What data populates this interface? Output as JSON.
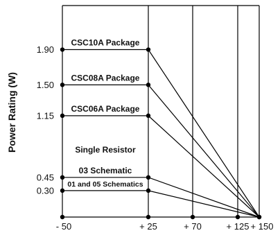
{
  "chart_data": {
    "type": "line",
    "ylabel": "Power Rating (W)",
    "xlim": [
      -50,
      150
    ],
    "ylim": [
      0,
      2.4
    ],
    "x_ticks": [
      -50,
      25,
      70,
      125,
      150
    ],
    "x_tick_labels": [
      "- 50",
      "+ 25",
      "+ 70",
      "+ 125",
      "+ 150"
    ],
    "y_ticks": [
      1.9,
      1.5,
      1.15,
      0.45,
      0.3
    ],
    "y_tick_labels": [
      "1.90",
      "1.50",
      "1.15",
      "0.45",
      "0.30"
    ],
    "grid": "vertical",
    "series": [
      {
        "name": "CSC10A Package",
        "x": [
          -50,
          25,
          150
        ],
        "y": [
          1.9,
          1.9,
          0
        ]
      },
      {
        "name": "CSC08A Package",
        "x": [
          -50,
          25,
          150
        ],
        "y": [
          1.5,
          1.5,
          0
        ]
      },
      {
        "name": "CSC06A Package",
        "x": [
          -50,
          25,
          150
        ],
        "y": [
          1.15,
          1.15,
          0
        ]
      },
      {
        "name": "03 Schematic",
        "x": [
          -50,
          25,
          150
        ],
        "y": [
          0.45,
          0.45,
          0
        ]
      },
      {
        "name": "01 and 05 Schematics",
        "x": [
          -50,
          25,
          150
        ],
        "y": [
          0.3,
          0.3,
          0
        ]
      }
    ],
    "annotations": [
      "Single Resistor"
    ]
  }
}
